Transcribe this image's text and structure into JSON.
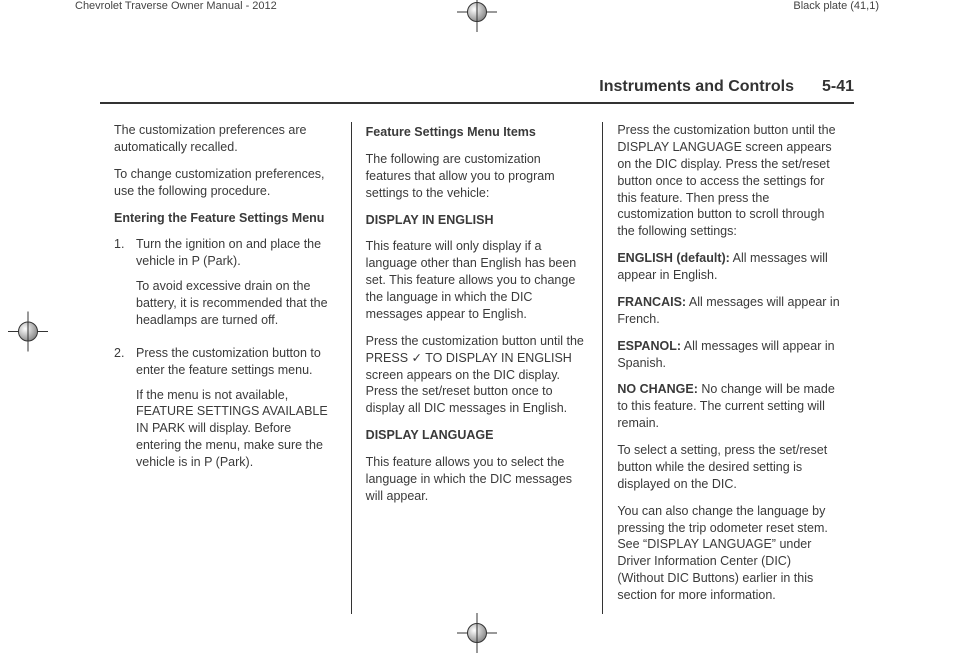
{
  "meta": {
    "manual_title": "Chevrolet Traverse Owner Manual - 2012",
    "plate": "Black plate (41,1)"
  },
  "header": {
    "section": "Instruments and Controls",
    "page": "5-41"
  },
  "col1": {
    "p1": "The customization preferences are automatically recalled.",
    "p2": "To change customization preferences, use the following procedure.",
    "h1": "Entering the Feature Settings Menu",
    "li1_num": "1.",
    "li1_a": "Turn the ignition on and place the vehicle in P (Park).",
    "li1_b": "To avoid excessive drain on the battery, it is recommended that the headlamps are turned off.",
    "li2_num": "2.",
    "li2_a": "Press the customization button to enter the feature settings menu.",
    "li2_b": "If the menu is not available, FEATURE SETTINGS AVAILABLE IN PARK will display. Before entering the menu, make sure the vehicle is in P (Park)."
  },
  "col2": {
    "h1": "Feature Settings Menu Items",
    "p1": "The following are customization features that allow you to program settings to the vehicle:",
    "h2": "DISPLAY IN ENGLISH",
    "p2": "This feature will only display if a language other than English has been set. This feature allows you to change the language in which the DIC messages appear to English.",
    "p3a": "Press the customization button until the PRESS ",
    "p3check": "✓",
    "p3b": " TO DISPLAY IN ENGLISH screen appears on the DIC display. Press the set/reset button once to display all DIC messages in English.",
    "h3": "DISPLAY LANGUAGE",
    "p4": "This feature allows you to select the language in which the DIC messages will appear."
  },
  "col3": {
    "p1": "Press the customization button until the DISPLAY LANGUAGE screen appears on the DIC display. Press the set/reset button once to access the settings for this feature. Then press the customization button to scroll through the following settings:",
    "o1_label": "ENGLISH (default):",
    "o1_text": "  All messages will appear in English.",
    "o2_label": "FRANCAIS:",
    "o2_text": "  All messages will appear in French.",
    "o3_label": "ESPANOL:",
    "o3_text": "  All messages will appear in Spanish.",
    "o4_label": "NO CHANGE:",
    "o4_text": "  No change will be made to this feature. The current setting will remain.",
    "p2": "To select a setting, press the set/reset button while the desired setting is displayed on the DIC.",
    "p3": "You can also change the language by pressing the trip odometer reset stem. See “DISPLAY LANGUAGE” under Driver Information Center (DIC) (Without DIC Buttons) earlier in this section for more information."
  }
}
